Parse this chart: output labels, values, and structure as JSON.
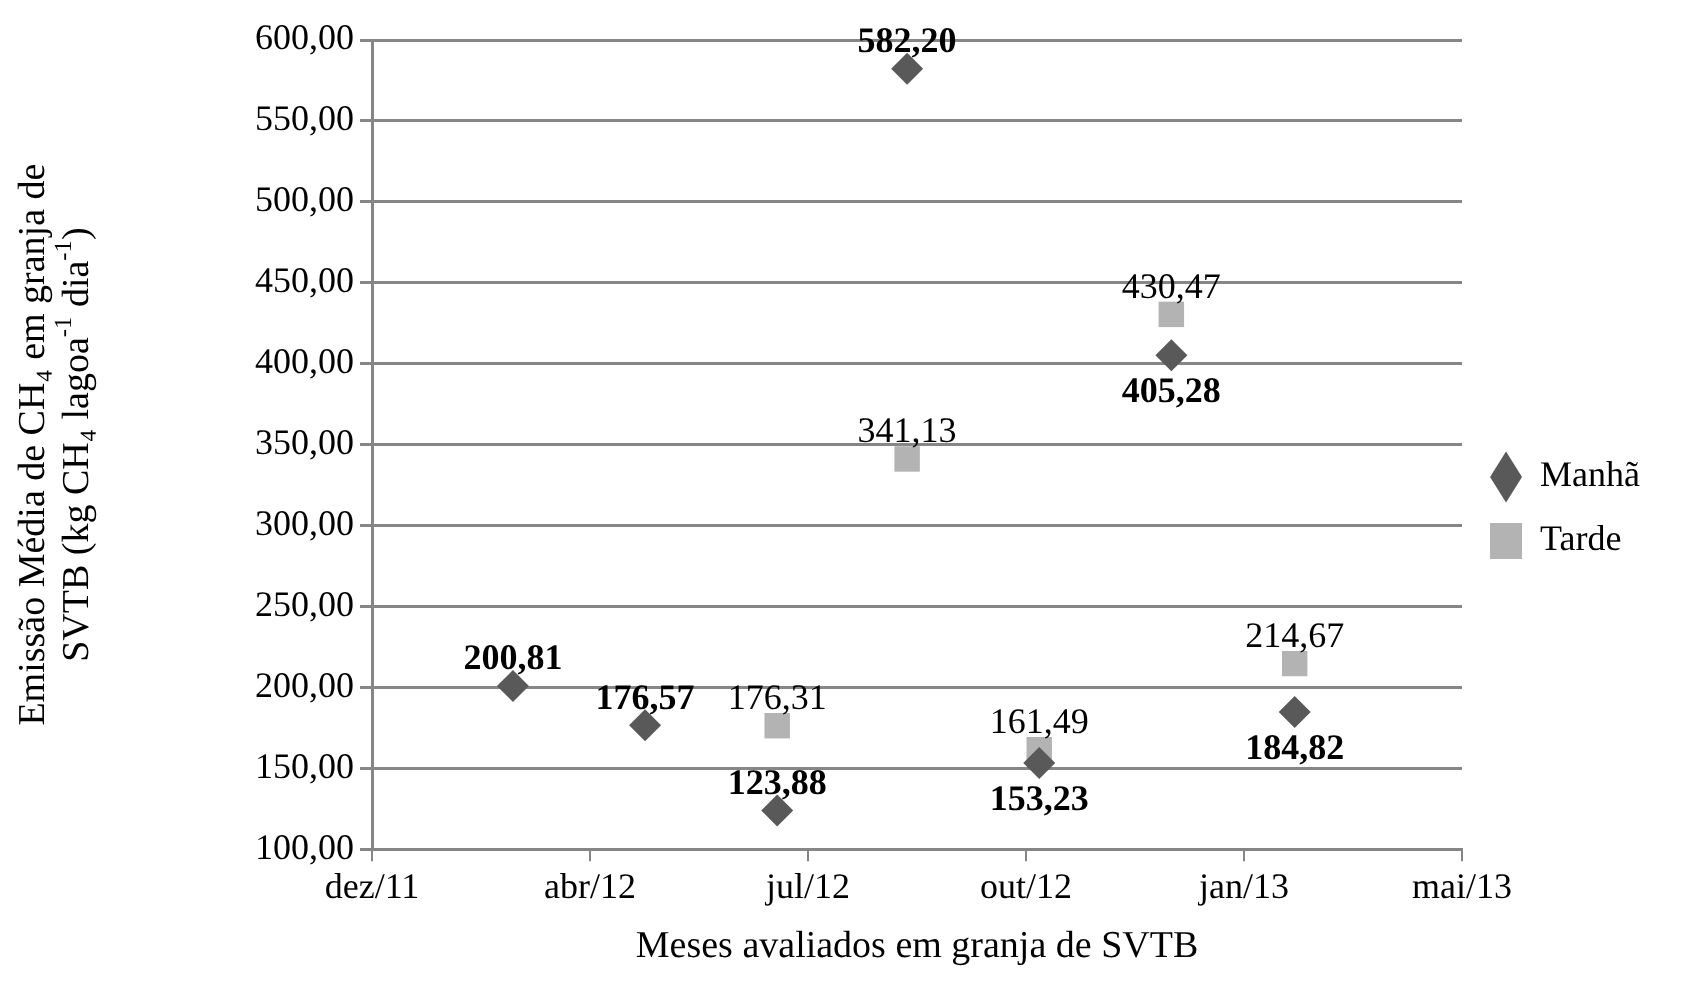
{
  "chart_data": {
    "type": "scatter",
    "xlabel": "Meses avaliados em granja de SVTB",
    "ylabel": "Emissão Média de CH₄ em granja de SVTB (kg CH₄ lagoa$^{-1}$ dia$^{-1}$)",
    "x": [
      "2012-02-29",
      "2012-04-29",
      "2012-06-28",
      "2012-08-26",
      "2012-10-25",
      "2012-12-24",
      "2013-02-18"
    ],
    "series": [
      {
        "name": "Manhã",
        "color": "#595959",
        "marker": "diamond",
        "values": [
          200.81,
          176.57,
          123.88,
          582.2,
          153.23,
          405.28,
          184.82
        ],
        "value_labels": [
          "200,81",
          "176,57",
          "123,88",
          "582,20",
          "153,23",
          "405,28",
          "184,82"
        ]
      },
      {
        "name": "Tarde",
        "color": "#b3b3b3",
        "marker": "square",
        "values": [
          null,
          null,
          176.31,
          341.13,
          161.49,
          430.47,
          214.67
        ],
        "value_labels": [
          null,
          null,
          "176,31",
          "341,13",
          "161,49",
          "430,47",
          "214,67"
        ]
      }
    ],
    "xlim": [
      "2011-12-27",
      "2013-05-05"
    ],
    "xticks": [
      {
        "value": "2011-12-27",
        "label": "dez/11"
      },
      {
        "value": "2012-04-04",
        "label": "abr/12"
      },
      {
        "value": "2012-07-12",
        "label": "jul/12"
      },
      {
        "value": "2012-10-19",
        "label": "out/12"
      },
      {
        "value": "2013-01-26",
        "label": "jan/13"
      },
      {
        "value": "2013-05-05",
        "label": "mai/13"
      }
    ],
    "ylim": [
      100,
      600
    ],
    "yticks": [
      {
        "value": 100,
        "label": "100,00"
      },
      {
        "value": 150,
        "label": "150,00"
      },
      {
        "value": 200,
        "label": "200,00"
      },
      {
        "value": 250,
        "label": "250,00"
      },
      {
        "value": 300,
        "label": "300,00"
      },
      {
        "value": 350,
        "label": "350,00"
      },
      {
        "value": 400,
        "label": "400,00"
      },
      {
        "value": 450,
        "label": "450,00"
      },
      {
        "value": 500,
        "label": "500,00"
      },
      {
        "value": 550,
        "label": "550,00"
      },
      {
        "value": 600,
        "label": "600,00"
      }
    ],
    "grid": "y",
    "legend": "right"
  }
}
